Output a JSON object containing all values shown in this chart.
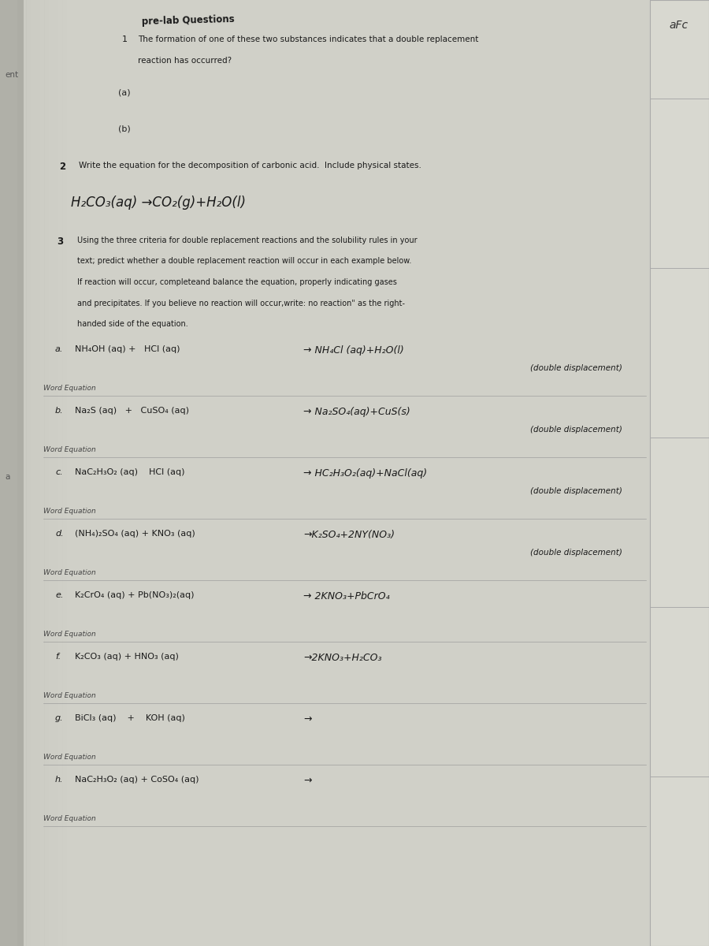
{
  "bg_color": "#c8c8c0",
  "page_color": "#d4d4cc",
  "title": "pre-lab Questions",
  "q1_num": "1",
  "q1_line1": "The formation of one of these two substances indicates that a double replacement",
  "q1_line2": "reaction has occurred?",
  "q1a": "(a)",
  "q1b": "(b)",
  "q2_num": "2",
  "q2_text": "Write the equation for the decomposition of carbonic acid.  Include physical states.",
  "q2_answer": "H₂CO₃(aq) →CO₂(g)+H₂O(l)",
  "q3_num": "3",
  "q3_lines": [
    "Using the three criteria for double replacement reactions and the solubility rules in your",
    "text; predict whether a double replacement reaction will occur in each example below.",
    "If reaction will occur, completeand balance the equation, properly indicating gases",
    "and precipitates. If you believe no reaction will occur,write: no reaction\" as the right-",
    "handed side of the equation."
  ],
  "reactions": [
    {
      "label": "a.",
      "eq_left": "NH₄OH (aq) +   HCl (aq)",
      "eq_right": "→ NH₄Cl (aq)+H₂O(l)",
      "note": "(double displacement)",
      "word_eq": "Word Equation"
    },
    {
      "label": "b.",
      "eq_left": "Na₂S (aq)   +   CuSO₄ (aq)",
      "eq_right": "→ Na₂SO₄(aq)+CuS(s)",
      "note": "(double displacement)",
      "word_eq": "Word Equation"
    },
    {
      "label": "c.",
      "eq_left": "NaC₂H₃O₂ (aq)    HCl (aq)",
      "eq_right": "→ HC₂H₃O₂(aq)+NaCl(aq)",
      "note": "(double displacement)",
      "word_eq": "Word Equation"
    },
    {
      "label": "d.",
      "eq_left": "(NH₄)₂SO₄ (aq) + KNO₃ (aq)",
      "eq_right": "→K₂SO₄+2NY(NO₃)",
      "note": "(double displacement)",
      "word_eq": "Word Equation"
    },
    {
      "label": "e.",
      "eq_left": "K₂CrO₄ (aq) + Pb(NO₃)₂(aq)",
      "eq_right": "→ 2KNO₃+PbCrO₄",
      "note": "",
      "word_eq": "Word Equation"
    },
    {
      "label": "f.",
      "eq_left": "K₂CO₃ (aq) + HNO₃ (aq)",
      "eq_right": "→2KNO₃+H₂CO₃",
      "note": "",
      "word_eq": "Word Equation"
    },
    {
      "label": "g.",
      "eq_left": "BiCl₃ (aq)    +    KOH (aq)",
      "eq_right": "→",
      "note": "",
      "word_eq": "Word Equation"
    },
    {
      "label": "h.",
      "eq_left": "NaC₂H₃O₂ (aq) + CoSO₄ (aq)",
      "eq_right": "→",
      "note": "",
      "word_eq": "Word Equation"
    }
  ],
  "right_label": "aFc",
  "left_top": "ent",
  "left_mid": "a"
}
